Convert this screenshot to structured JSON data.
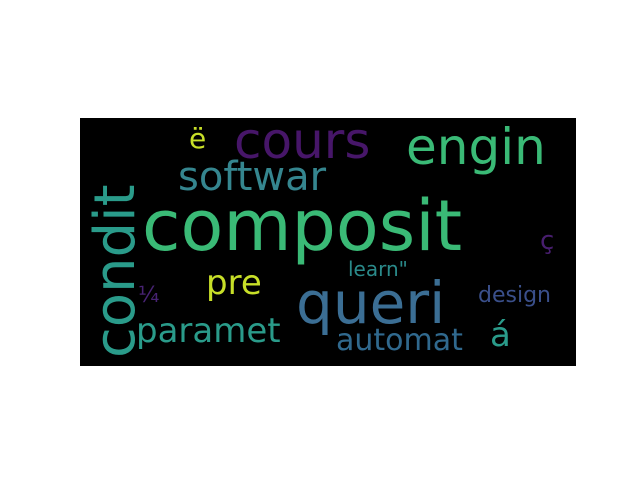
{
  "words": [
    {
      "id": "composit",
      "text": "composit",
      "color": "#3aba76"
    },
    {
      "id": "queri",
      "text": "queri",
      "color": "#3b6e94"
    },
    {
      "id": "condit",
      "text": "condit",
      "color": "#2a9b8a"
    },
    {
      "id": "cours",
      "text": "cours",
      "color": "#471669"
    },
    {
      "id": "engin",
      "text": "engin",
      "color": "#3aba76"
    },
    {
      "id": "softwar",
      "text": "softwar",
      "color": "#35868f"
    },
    {
      "id": "paramet",
      "text": "paramet",
      "color": "#2a9b8a"
    },
    {
      "id": "automat",
      "text": "automat",
      "color": "#30698e"
    },
    {
      "id": "pre",
      "text": "pre",
      "color": "#c8df28"
    },
    {
      "id": "learn",
      "text": "learn\"",
      "color": "#2a8a8a"
    },
    {
      "id": "design",
      "text": "design",
      "color": "#3a4f8a"
    },
    {
      "id": "e-umlaut",
      "text": "ë",
      "color": "#c8df28"
    },
    {
      "id": "c-cedilla",
      "text": "ç",
      "color": "#481e6f"
    },
    {
      "id": "one-quarter",
      "text": "¼",
      "color": "#482374"
    },
    {
      "id": "a-acute",
      "text": "á",
      "color": "#2a9b8a"
    }
  ]
}
